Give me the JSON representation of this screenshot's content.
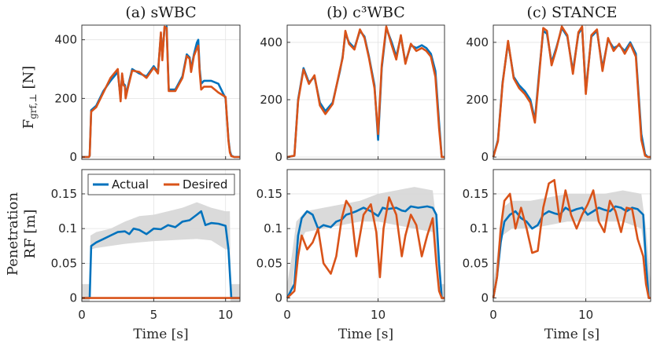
{
  "figure": {
    "colors": {
      "actual": "#0072BD",
      "desired": "#D95319",
      "band": "#d6d6d6",
      "grid": "#e3e3e3",
      "axis": "#262626"
    }
  },
  "chart_data": [
    {
      "id": "a-top",
      "type": "line",
      "title": "(a) sWBC",
      "xlabel": "",
      "ylabel": "F_{grf,⊥} [N]",
      "xlim": [
        0,
        11
      ],
      "ylim": [
        -8,
        450
      ],
      "xticks": [
        0,
        5,
        10
      ],
      "yticks": [
        0,
        200,
        400
      ],
      "show_xticklabels": false,
      "series": [
        {
          "name": "Actual",
          "x": [
            0,
            0.5,
            0.55,
            0.65,
            1.0,
            1.5,
            2.0,
            2.5,
            2.7,
            2.8,
            2.9,
            3.0,
            3.05,
            3.2,
            3.5,
            4.0,
            4.5,
            5.0,
            5.3,
            5.5,
            5.6,
            5.75,
            5.9,
            6.0,
            6.05,
            6.5,
            7.0,
            7.3,
            7.5,
            7.6,
            7.8,
            8.0,
            8.1,
            8.2,
            8.3,
            8.5,
            9.0,
            9.5,
            10.0,
            10.2,
            10.3,
            10.4,
            10.6,
            11
          ],
          "y": [
            0,
            0,
            5,
            160,
            175,
            225,
            260,
            290,
            200,
            280,
            250,
            245,
            210,
            240,
            300,
            285,
            275,
            310,
            290,
            420,
            340,
            440,
            445,
            300,
            230,
            230,
            275,
            350,
            340,
            300,
            350,
            390,
            400,
            300,
            250,
            260,
            260,
            250,
            200,
            60,
            20,
            5,
            0,
            0
          ]
        },
        {
          "name": "Desired",
          "x": [
            0,
            0.5,
            0.55,
            0.65,
            1.0,
            1.5,
            2.0,
            2.5,
            2.7,
            2.8,
            2.9,
            3.0,
            3.05,
            3.2,
            3.5,
            4.0,
            4.5,
            5.0,
            5.3,
            5.5,
            5.6,
            5.75,
            5.9,
            6.0,
            6.05,
            6.5,
            7.0,
            7.3,
            7.5,
            7.6,
            7.8,
            8.0,
            8.1,
            8.2,
            8.3,
            8.5,
            9.0,
            9.5,
            10.0,
            10.2,
            10.3,
            10.4,
            10.6,
            11
          ],
          "y": [
            0,
            0,
            5,
            155,
            170,
            220,
            270,
            300,
            190,
            285,
            245,
            240,
            200,
            235,
            295,
            290,
            270,
            305,
            285,
            425,
            330,
            445,
            440,
            295,
            225,
            225,
            270,
            345,
            335,
            290,
            345,
            370,
            380,
            290,
            230,
            240,
            240,
            220,
            205,
            55,
            15,
            3,
            0,
            0
          ]
        }
      ]
    },
    {
      "id": "b-top",
      "type": "line",
      "title": "(b) c³WBC",
      "xlabel": "",
      "ylabel": "",
      "xlim": [
        0,
        17.3
      ],
      "ylim": [
        -8,
        460
      ],
      "xticks": [
        0,
        10
      ],
      "yticks": [
        0,
        200,
        400
      ],
      "show_xticklabels": false,
      "series": [
        {
          "name": "Actual",
          "x": [
            0,
            0.8,
            1.2,
            1.8,
            2.4,
            3.0,
            3.6,
            4.2,
            5.0,
            5.8,
            6.1,
            6.4,
            6.8,
            7.4,
            8.0,
            8.5,
            9.0,
            9.6,
            10.0,
            10.4,
            10.9,
            11.5,
            12.0,
            12.5,
            13.0,
            13.6,
            14.2,
            14.8,
            15.3,
            15.8,
            16.3,
            16.7,
            17.0,
            17.3
          ],
          "y": [
            0,
            5,
            200,
            310,
            260,
            280,
            190,
            160,
            190,
            300,
            350,
            430,
            400,
            380,
            440,
            420,
            350,
            250,
            60,
            310,
            450,
            400,
            350,
            420,
            330,
            390,
            380,
            390,
            380,
            360,
            300,
            120,
            0,
            0
          ]
        },
        {
          "name": "Desired",
          "x": [
            0,
            0.8,
            1.2,
            1.8,
            2.4,
            3.0,
            3.6,
            4.2,
            5.0,
            5.8,
            6.1,
            6.4,
            6.8,
            7.4,
            8.0,
            8.5,
            9.0,
            9.6,
            10.0,
            10.4,
            10.9,
            11.5,
            12.0,
            12.5,
            13.0,
            13.6,
            14.2,
            14.8,
            15.3,
            15.8,
            16.3,
            16.7,
            17.0,
            17.3
          ],
          "y": [
            0,
            5,
            195,
            305,
            255,
            285,
            180,
            150,
            185,
            305,
            345,
            440,
            395,
            375,
            445,
            415,
            345,
            240,
            80,
            320,
            455,
            390,
            340,
            425,
            325,
            395,
            370,
            380,
            370,
            350,
            280,
            100,
            0,
            0
          ]
        }
      ]
    },
    {
      "id": "c-top",
      "type": "line",
      "title": "(c) STANCE",
      "xlabel": "",
      "ylabel": "",
      "xlim": [
        0,
        17
      ],
      "ylim": [
        -8,
        460
      ],
      "xticks": [
        0,
        10
      ],
      "yticks": [
        0,
        200,
        400
      ],
      "show_xticklabels": false,
      "series": [
        {
          "name": "Actual",
          "x": [
            0,
            0.5,
            1.0,
            1.6,
            2.2,
            2.8,
            3.4,
            4.0,
            4.5,
            5.0,
            5.4,
            5.8,
            6.3,
            6.8,
            7.4,
            8.0,
            8.6,
            9.2,
            9.6,
            10.0,
            10.6,
            11.2,
            11.8,
            12.4,
            13.0,
            13.6,
            14.2,
            14.8,
            15.4,
            16.0,
            16.4,
            16.7,
            17
          ],
          "y": [
            0,
            60,
            260,
            400,
            280,
            250,
            230,
            200,
            130,
            310,
            440,
            430,
            330,
            380,
            450,
            420,
            300,
            430,
            450,
            230,
            420,
            440,
            310,
            410,
            380,
            390,
            370,
            400,
            360,
            80,
            10,
            0,
            0
          ]
        },
        {
          "name": "Desired",
          "x": [
            0,
            0.5,
            1.0,
            1.6,
            2.2,
            2.8,
            3.4,
            4.0,
            4.5,
            5.0,
            5.4,
            5.8,
            6.3,
            6.8,
            7.4,
            8.0,
            8.6,
            9.2,
            9.6,
            10.0,
            10.6,
            11.2,
            11.8,
            12.4,
            13.0,
            13.6,
            14.2,
            14.8,
            15.4,
            16.0,
            16.4,
            16.7,
            17
          ],
          "y": [
            0,
            55,
            255,
            405,
            275,
            240,
            220,
            190,
            120,
            300,
            450,
            440,
            320,
            375,
            455,
            425,
            290,
            435,
            455,
            220,
            425,
            445,
            300,
            415,
            370,
            395,
            360,
            395,
            350,
            60,
            5,
            0,
            0
          ]
        }
      ]
    },
    {
      "id": "a-bottom",
      "type": "line",
      "title": "",
      "xlabel": "Time [s]",
      "ylabel": "RF [m]",
      "ylabel_top": "Penetration",
      "xlim": [
        0,
        11
      ],
      "ylim": [
        -0.005,
        0.185
      ],
      "xticks": [
        0,
        5,
        10
      ],
      "yticks": [
        0,
        0.05,
        0.1,
        0.15
      ],
      "show_xticklabels": true,
      "legend": [
        "Actual",
        "Desired"
      ],
      "legend_position": "top",
      "band": {
        "x": [
          0,
          0.55,
          0.6,
          1,
          2,
          3,
          4,
          5,
          6,
          7,
          8,
          9,
          10,
          10.3,
          10.35,
          11
        ],
        "lower": [
          -0.005,
          -0.005,
          0.07,
          0.072,
          0.075,
          0.078,
          0.08,
          0.082,
          0.083,
          0.084,
          0.085,
          0.083,
          0.07,
          0.07,
          -0.005,
          -0.005
        ],
        "upper": [
          0.02,
          0.02,
          0.09,
          0.095,
          0.1,
          0.11,
          0.118,
          0.12,
          0.125,
          0.13,
          0.138,
          0.13,
          0.125,
          0.125,
          0.02,
          0.02
        ]
      },
      "series": [
        {
          "name": "Actual",
          "x": [
            0,
            0.55,
            0.65,
            1.0,
            1.5,
            2.0,
            2.5,
            3.0,
            3.3,
            3.6,
            4.0,
            4.5,
            5.0,
            5.5,
            6.0,
            6.5,
            7.0,
            7.5,
            8.0,
            8.3,
            8.6,
            9.0,
            9.5,
            10.0,
            10.2,
            10.4,
            10.6,
            11
          ],
          "y": [
            0,
            0,
            0.075,
            0.08,
            0.085,
            0.09,
            0.095,
            0.096,
            0.092,
            0.1,
            0.098,
            0.092,
            0.1,
            0.099,
            0.105,
            0.102,
            0.11,
            0.112,
            0.12,
            0.125,
            0.105,
            0.108,
            0.107,
            0.104,
            0.07,
            0.0,
            0,
            0
          ]
        },
        {
          "name": "Desired",
          "x": [
            0,
            11
          ],
          "y": [
            0,
            0
          ]
        }
      ]
    },
    {
      "id": "b-bottom",
      "type": "line",
      "title": "",
      "xlabel": "Time [s]",
      "ylabel": "",
      "xlim": [
        0,
        17.3
      ],
      "ylim": [
        -0.005,
        0.185
      ],
      "xticks": [
        0,
        10
      ],
      "yticks": [
        0,
        0.05,
        0.1,
        0.15
      ],
      "show_xticklabels": true,
      "band": {
        "x": [
          0,
          0.5,
          1,
          2,
          4,
          6,
          8,
          10,
          12,
          14,
          16,
          16.5,
          17,
          17.3
        ],
        "lower": [
          -0.005,
          0.01,
          0.07,
          0.095,
          0.1,
          0.105,
          0.11,
          0.11,
          0.105,
          0.1,
          0.095,
          0.05,
          -0.005,
          -0.005
        ],
        "upper": [
          0.02,
          0.06,
          0.11,
          0.125,
          0.13,
          0.135,
          0.14,
          0.15,
          0.155,
          0.16,
          0.155,
          0.1,
          0.02,
          0.02
        ]
      },
      "series": [
        {
          "name": "Actual",
          "x": [
            0,
            0.8,
            1.2,
            1.6,
            2.2,
            2.8,
            3.4,
            4.0,
            4.8,
            5.4,
            6.0,
            6.5,
            7.0,
            7.6,
            8.4,
            9.2,
            10.0,
            10.5,
            11.0,
            12.0,
            12.6,
            13.0,
            13.6,
            14.4,
            15.4,
            16.0,
            16.4,
            16.7,
            17.0,
            17.3
          ],
          "y": [
            0,
            0.02,
            0.09,
            0.115,
            0.125,
            0.12,
            0.1,
            0.105,
            0.102,
            0.11,
            0.113,
            0.12,
            0.122,
            0.125,
            0.13,
            0.125,
            0.118,
            0.13,
            0.128,
            0.13,
            0.126,
            0.125,
            0.132,
            0.13,
            0.132,
            0.13,
            0.12,
            0.05,
            0,
            0
          ]
        },
        {
          "name": "Desired",
          "x": [
            0,
            0.8,
            1.2,
            1.6,
            2.2,
            2.8,
            3.4,
            4.0,
            4.8,
            5.4,
            6.0,
            6.5,
            7.0,
            7.6,
            8.4,
            9.2,
            9.8,
            10.2,
            10.6,
            11.2,
            12.0,
            12.6,
            13.0,
            13.6,
            14.2,
            14.8,
            15.4,
            16.0,
            16.4,
            16.7,
            17.0,
            17.3
          ],
          "y": [
            0,
            0.01,
            0.06,
            0.09,
            0.07,
            0.08,
            0.1,
            0.05,
            0.035,
            0.06,
            0.115,
            0.14,
            0.13,
            0.06,
            0.12,
            0.135,
            0.095,
            0.03,
            0.1,
            0.145,
            0.12,
            0.06,
            0.09,
            0.12,
            0.105,
            0.06,
            0.09,
            0.115,
            0.05,
            0.01,
            0,
            0
          ]
        }
      ]
    },
    {
      "id": "c-bottom",
      "type": "line",
      "title": "",
      "xlabel": "Time [s]",
      "ylabel": "",
      "xlim": [
        0,
        17
      ],
      "ylim": [
        -0.005,
        0.185
      ],
      "xticks": [
        0,
        10
      ],
      "yticks": [
        0,
        0.05,
        0.1,
        0.15
      ],
      "show_xticklabels": true,
      "band": {
        "x": [
          0,
          0.4,
          1,
          2,
          4,
          6,
          8,
          10,
          12,
          14,
          16,
          16.5,
          17
        ],
        "lower": [
          -0.005,
          0.02,
          0.09,
          0.1,
          0.1,
          0.105,
          0.11,
          0.11,
          0.11,
          0.11,
          0.1,
          0.05,
          -0.005
        ],
        "upper": [
          0.02,
          0.06,
          0.13,
          0.14,
          0.14,
          0.145,
          0.15,
          0.15,
          0.15,
          0.155,
          0.15,
          0.1,
          0.02
        ]
      },
      "series": [
        {
          "name": "Actual",
          "x": [
            0,
            0.4,
            0.8,
            1.2,
            1.8,
            2.4,
            3.0,
            3.6,
            4.2,
            4.8,
            5.4,
            6.0,
            6.6,
            7.2,
            7.8,
            8.4,
            9.0,
            9.6,
            10.2,
            10.8,
            11.4,
            12.0,
            12.6,
            13.2,
            13.8,
            14.4,
            15.0,
            15.6,
            16.2,
            16.5,
            16.8,
            17
          ],
          "y": [
            0,
            0.03,
            0.08,
            0.11,
            0.12,
            0.125,
            0.115,
            0.11,
            0.1,
            0.105,
            0.12,
            0.125,
            0.122,
            0.12,
            0.13,
            0.125,
            0.128,
            0.13,
            0.12,
            0.125,
            0.13,
            0.127,
            0.125,
            0.132,
            0.13,
            0.125,
            0.13,
            0.128,
            0.12,
            0.05,
            0,
            0
          ]
        },
        {
          "name": "Desired",
          "x": [
            0,
            0.4,
            0.8,
            1.2,
            1.8,
            2.4,
            3.0,
            3.6,
            4.2,
            4.8,
            5.4,
            6.0,
            6.6,
            7.2,
            7.8,
            8.4,
            9.0,
            9.6,
            10.2,
            10.8,
            11.4,
            12.0,
            12.6,
            13.2,
            13.8,
            14.4,
            15.0,
            15.6,
            16.2,
            16.5,
            16.8,
            17
          ],
          "y": [
            0,
            0.03,
            0.1,
            0.14,
            0.15,
            0.1,
            0.13,
            0.1,
            0.065,
            0.068,
            0.13,
            0.165,
            0.17,
            0.11,
            0.155,
            0.12,
            0.1,
            0.12,
            0.135,
            0.155,
            0.11,
            0.095,
            0.14,
            0.125,
            0.095,
            0.13,
            0.128,
            0.085,
            0.06,
            0.02,
            0,
            0
          ]
        }
      ]
    }
  ]
}
